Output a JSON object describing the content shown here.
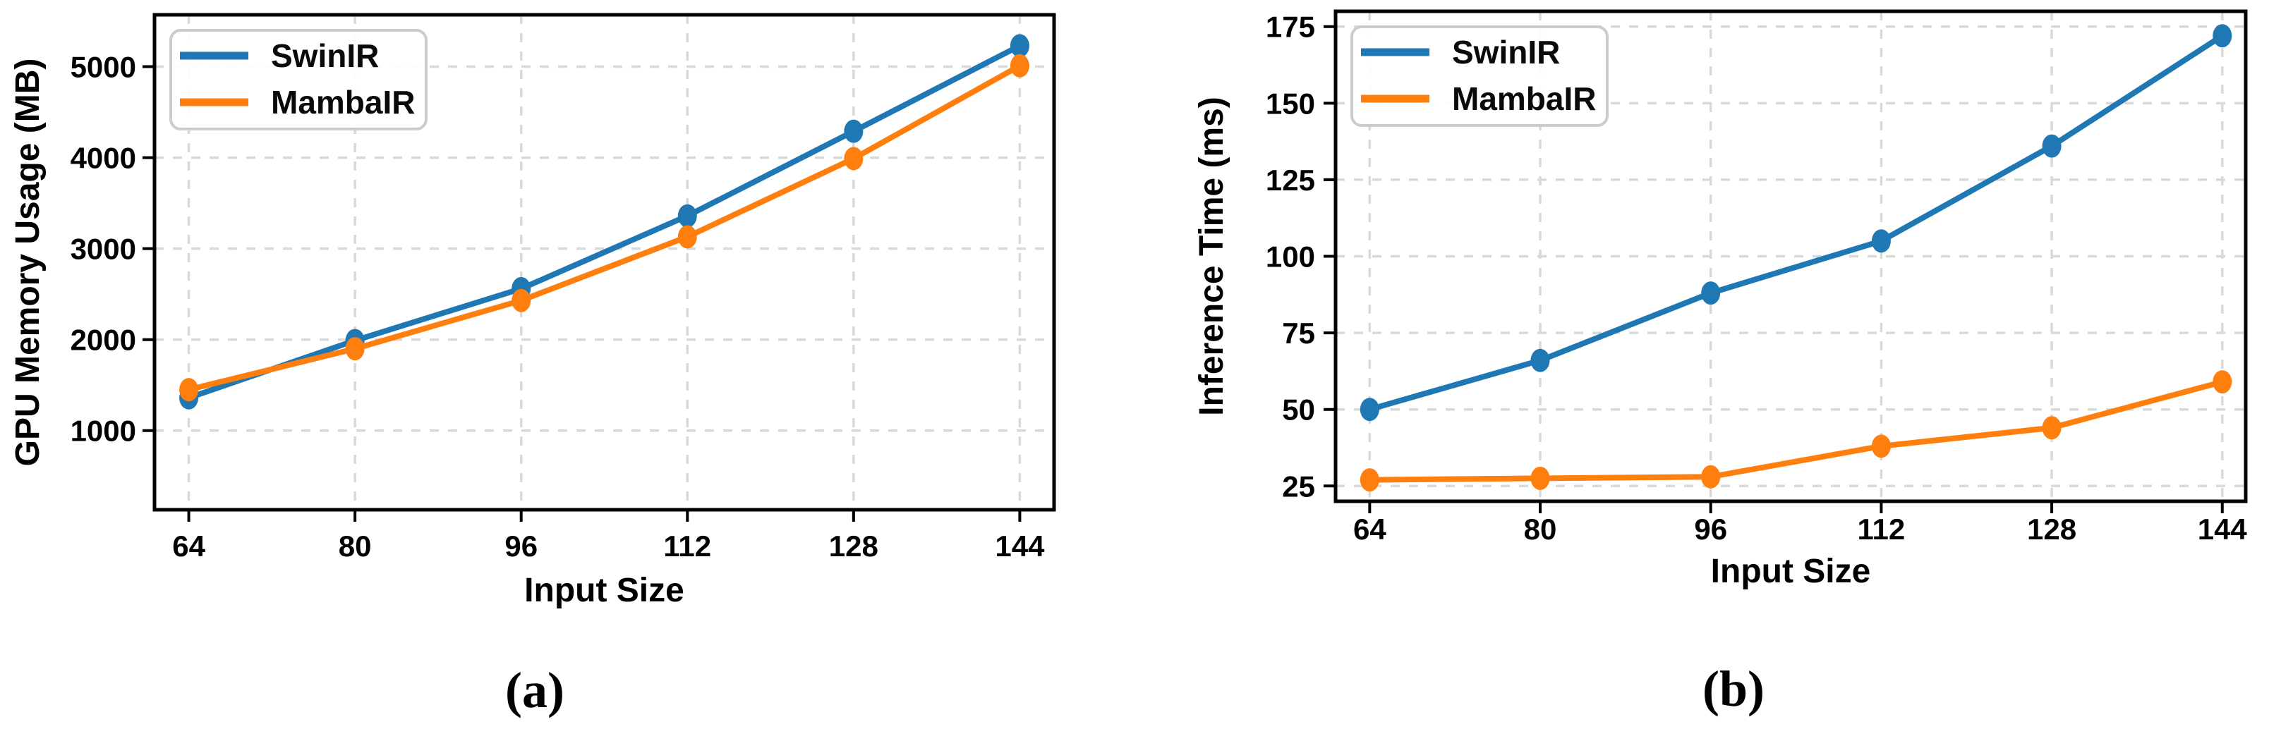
{
  "figure": {
    "caption_a": "(a)",
    "caption_b": "(b)"
  },
  "colors": {
    "swinir_blue": "#1f77b4",
    "mambair_orange": "#ff7f0e",
    "grid": "#d9d9d9",
    "legend_border": "#cccccc",
    "axis": "#000000"
  },
  "chart_data": [
    {
      "type": "line",
      "title": "",
      "xlabel": "Input Size",
      "ylabel": "GPU Memory Usage (MB)",
      "caption": "(a)",
      "x": [
        64,
        80,
        96,
        112,
        128,
        144
      ],
      "xticks": [
        64,
        80,
        96,
        112,
        128,
        144
      ],
      "yticks": [
        1000,
        2000,
        3000,
        4000,
        5000
      ],
      "xlim": [
        60.7,
        147.3
      ],
      "ylim": [
        130,
        5570
      ],
      "grid": true,
      "legend_position": "upper-left",
      "marker": "o",
      "series": [
        {
          "name": "SwinIR",
          "color": "#1f77b4",
          "values": [
            1360,
            1990,
            2560,
            3360,
            4290,
            5230
          ]
        },
        {
          "name": "MambaIR",
          "color": "#ff7f0e",
          "values": [
            1450,
            1900,
            2430,
            3130,
            3990,
            5010
          ]
        }
      ]
    },
    {
      "type": "line",
      "title": "",
      "xlabel": "Input Size",
      "ylabel": "Inference Time (ms)",
      "caption": "(b)",
      "x": [
        64,
        80,
        96,
        112,
        128,
        144
      ],
      "xticks": [
        64,
        80,
        96,
        112,
        128,
        144
      ],
      "yticks": [
        25,
        50,
        75,
        100,
        125,
        150,
        175
      ],
      "xlim": [
        60.8,
        146.2
      ],
      "ylim": [
        20,
        180
      ],
      "grid": true,
      "legend_position": "upper-left",
      "marker": "o",
      "series": [
        {
          "name": "SwinIR",
          "color": "#1f77b4",
          "values": [
            50,
            66,
            88,
            105,
            136,
            172
          ]
        },
        {
          "name": "MambaIR",
          "color": "#ff7f0e",
          "values": [
            27,
            27.5,
            28,
            38,
            44,
            59
          ]
        }
      ]
    }
  ]
}
